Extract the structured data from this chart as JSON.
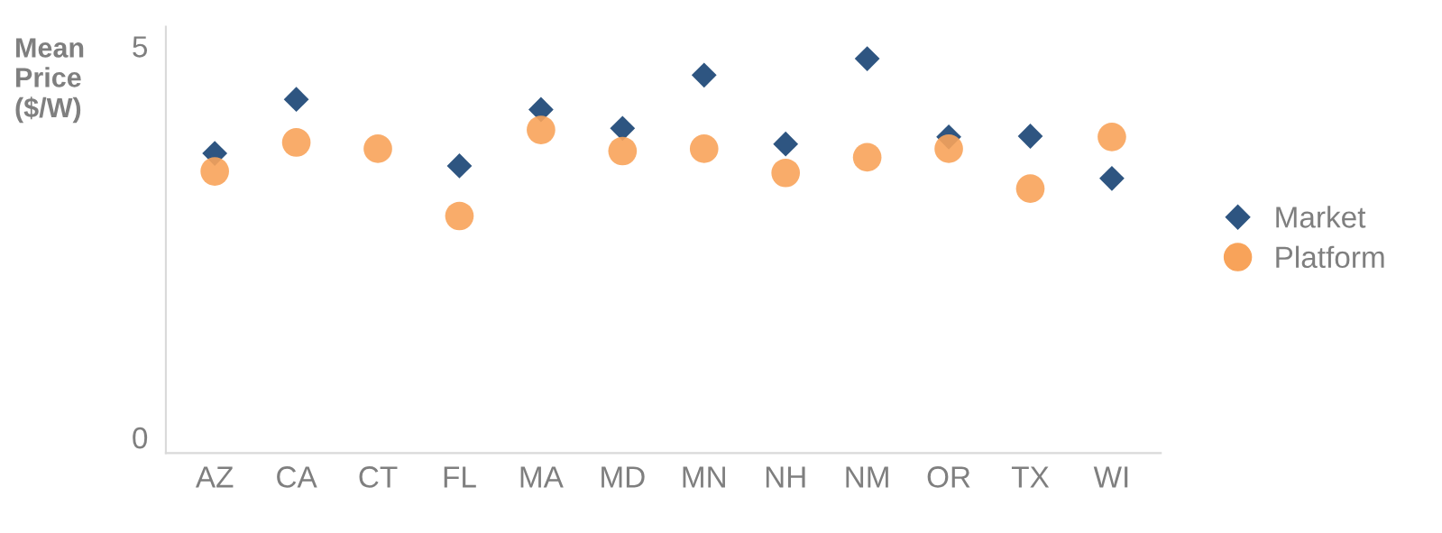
{
  "chart_data": {
    "type": "scatter",
    "ylabel": "Mean Price ($/W)",
    "categories": [
      "AZ",
      "CA",
      "CT",
      "FL",
      "MA",
      "MD",
      "MN",
      "NH",
      "NM",
      "OR",
      "TX",
      "WI"
    ],
    "series": [
      {
        "name": "Market",
        "color": "#2e5581",
        "marker": "diamond",
        "values": [
          3.63,
          4.32,
          null,
          3.47,
          4.19,
          3.95,
          4.63,
          3.75,
          4.84,
          3.84,
          3.85,
          3.31
        ]
      },
      {
        "name": "Platform",
        "color": "#f8a35a",
        "marker": "circle",
        "values": [
          3.4,
          3.77,
          3.69,
          2.83,
          3.93,
          3.66,
          3.69,
          3.38,
          3.58,
          3.69,
          3.18,
          3.84
        ]
      }
    ],
    "ylim": [
      -0.2,
      5.25
    ],
    "yticks": [
      0,
      5
    ],
    "grid": false,
    "legend": "right"
  }
}
